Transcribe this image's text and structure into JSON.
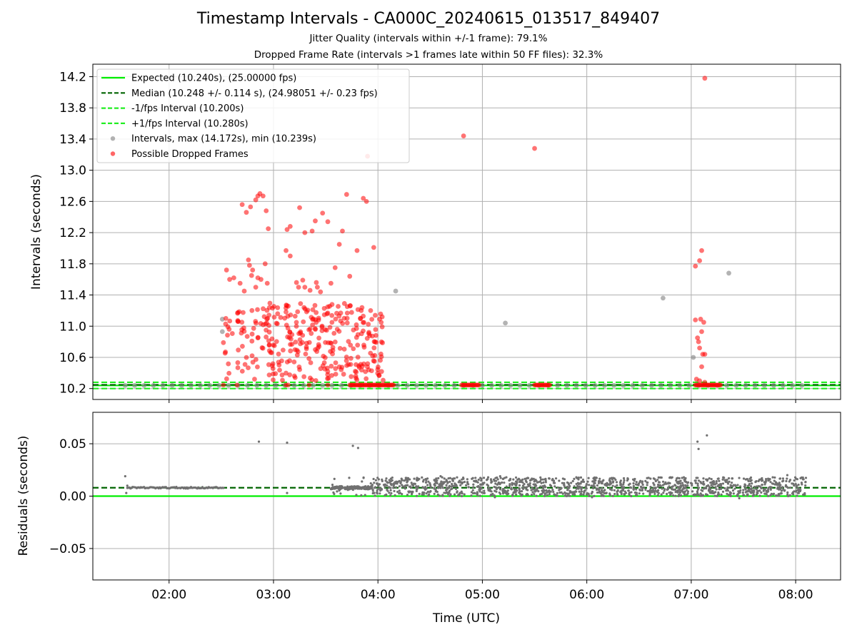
{
  "title": "Timestamp Intervals - CA000C_20240615_013517_849407",
  "subtitle_1": "Jitter Quality (intervals within +/-1 frame): 79.1%",
  "subtitle_2": "Dropped Frame Rate (intervals >1 frames late within 50 FF files): 32.3%",
  "colors": {
    "expected": "#00ee00",
    "median": "#006400",
    "bound": "#22ee22",
    "intervals": "#808080",
    "dropped": "#ff0000",
    "grid": "#b0b0b0"
  },
  "chart_data": [
    {
      "type": "scatter",
      "ylabel": "Intervals (seconds)",
      "xlim": [
        1.27,
        8.43
      ],
      "ylim": [
        10.06,
        14.36
      ],
      "yticks": [
        10.2,
        10.6,
        11.0,
        11.4,
        11.8,
        12.2,
        12.6,
        13.0,
        13.4,
        13.8,
        14.2
      ],
      "ytick_labels": [
        "10.2",
        "10.6",
        "11.0",
        "11.4",
        "11.8",
        "12.2",
        "12.6",
        "13.0",
        "13.4",
        "13.8",
        "14.2"
      ],
      "grid": true,
      "legend_position": "top-left",
      "lines": [
        {
          "name": "Expected (10.240s), (25.00000 fps)",
          "y": 10.24,
          "style": "solid",
          "color": "#00ee00"
        },
        {
          "name": "Median (10.248 +/- 0.114 s), (24.98051 +/- 0.23 fps)",
          "y": 10.248,
          "style": "dashed",
          "color": "#006400"
        },
        {
          "name": "-1/fps Interval (10.200s)",
          "y": 10.2,
          "style": "dashed",
          "color": "#22ee22"
        },
        {
          "name": "+1/fps Interval (10.280s)",
          "y": 10.28,
          "style": "dashed",
          "color": "#22ee22"
        }
      ],
      "series": [
        {
          "name": "Intervals, max (14.172s), min (10.239s)",
          "color": "#808080",
          "baseline": {
            "y": 10.24,
            "x_start": 1.58,
            "x_end": 8.08,
            "step": 0.09
          },
          "points": [
            [
              2.51,
              11.09
            ],
            [
              2.51,
              10.93
            ],
            [
              4.17,
              11.45
            ],
            [
              5.22,
              11.04
            ],
            [
              6.73,
              11.36
            ],
            [
              7.02,
              10.6
            ],
            [
              7.36,
              11.68
            ]
          ]
        },
        {
          "name": "Possible Dropped Frames",
          "color": "#ff0000",
          "cluster": {
            "x_start": 2.52,
            "x_end": 4.05,
            "y_min": 10.3,
            "y_max": 11.3,
            "count": 330
          },
          "cluster_baseline_segments": [
            [
              3.73,
              4.15
            ],
            [
              4.8,
              4.97
            ],
            [
              5.5,
              5.65
            ],
            [
              7.04,
              7.28
            ]
          ],
          "points": [
            [
              2.55,
              11.72
            ],
            [
              2.58,
              11.6
            ],
            [
              2.62,
              11.62
            ],
            [
              2.68,
              11.55
            ],
            [
              2.72,
              11.45
            ],
            [
              2.76,
              11.85
            ],
            [
              2.77,
              11.78
            ],
            [
              2.79,
              11.65
            ],
            [
              2.8,
              11.72
            ],
            [
              2.83,
              11.5
            ],
            [
              2.85,
              11.62
            ],
            [
              2.88,
              11.6
            ],
            [
              2.92,
              11.8
            ],
            [
              2.94,
              11.55
            ],
            [
              2.7,
              12.56
            ],
            [
              2.74,
              12.46
            ],
            [
              2.78,
              12.53
            ],
            [
              2.83,
              12.62
            ],
            [
              2.85,
              12.67
            ],
            [
              2.87,
              12.7
            ],
            [
              2.9,
              12.67
            ],
            [
              2.93,
              12.48
            ],
            [
              2.95,
              12.25
            ],
            [
              3.12,
              11.97
            ],
            [
              3.16,
              11.9
            ],
            [
              3.22,
              11.56
            ],
            [
              3.24,
              11.5
            ],
            [
              3.28,
              11.59
            ],
            [
              3.13,
              12.24
            ],
            [
              3.16,
              12.28
            ],
            [
              3.25,
              12.52
            ],
            [
              3.3,
              12.2
            ],
            [
              3.37,
              12.22
            ],
            [
              3.4,
              12.35
            ],
            [
              3.41,
              11.56
            ],
            [
              3.45,
              11.44
            ],
            [
              3.47,
              12.45
            ],
            [
              3.52,
              12.34
            ],
            [
              3.35,
              11.46
            ],
            [
              3.42,
              11.5
            ],
            [
              3.55,
              11.55
            ],
            [
              3.59,
              11.75
            ],
            [
              3.63,
              12.05
            ],
            [
              3.66,
              12.22
            ],
            [
              3.7,
              12.69
            ],
            [
              3.73,
              11.64
            ],
            [
              3.8,
              11.97
            ],
            [
              3.86,
              12.64
            ],
            [
              3.89,
              12.6
            ],
            [
              3.84,
              11.2
            ],
            [
              3.9,
              13.18
            ],
            [
              3.93,
              11.2
            ],
            [
              3.96,
              12.01
            ],
            [
              3.3,
              11.5
            ],
            [
              4.82,
              13.44
            ],
            [
              5.5,
              13.28
            ],
            [
              7.13,
              14.18
            ],
            [
              7.04,
              11.77
            ],
            [
              7.08,
              11.84
            ],
            [
              7.1,
              11.97
            ],
            [
              7.04,
              11.08
            ],
            [
              7.09,
              11.09
            ],
            [
              7.12,
              11.05
            ],
            [
              7.06,
              10.85
            ],
            [
              7.1,
              10.93
            ],
            [
              7.08,
              10.72
            ],
            [
              7.07,
              10.8
            ],
            [
              7.11,
              10.64
            ],
            [
              7.13,
              10.64
            ],
            [
              7.1,
              10.48
            ],
            [
              7.05,
              10.32
            ],
            [
              7.08,
              10.3
            ],
            [
              7.13,
              10.28
            ]
          ]
        }
      ]
    },
    {
      "type": "scatter",
      "xlabel": "Time (UTC)",
      "ylabel": "Residuals (seconds)",
      "xlim": [
        1.27,
        8.43
      ],
      "ylim": [
        -0.08,
        0.08
      ],
      "yticks": [
        -0.05,
        0.0,
        0.05
      ],
      "ytick_labels": [
        "−0.05",
        "0.00",
        "0.05"
      ],
      "xticks": [
        2,
        3,
        4,
        5,
        6,
        7,
        8
      ],
      "xtick_labels": [
        "02:00",
        "03:00",
        "04:00",
        "05:00",
        "06:00",
        "07:00",
        "08:00"
      ],
      "grid": true,
      "lines": [
        {
          "y": 0.0,
          "style": "solid",
          "color": "#00ee00"
        },
        {
          "y": 0.008,
          "style": "dashed",
          "color": "#006400"
        }
      ],
      "series": [
        {
          "color": "#707070",
          "early": {
            "x_start": 1.6,
            "x_end": 2.52,
            "y": 0.008
          },
          "dense": {
            "x_start": 3.55,
            "x_end": 8.1,
            "y_min": 0.0,
            "y_max": 0.018,
            "count": 1500
          },
          "points": [
            [
              1.58,
              0.019
            ],
            [
              1.59,
              0.003
            ],
            [
              1.6,
              0.01
            ],
            [
              2.86,
              0.052
            ],
            [
              3.13,
              0.051
            ],
            [
              3.13,
              0.003
            ],
            [
              3.76,
              0.048
            ],
            [
              3.81,
              0.046
            ],
            [
              7.06,
              0.052
            ],
            [
              7.07,
              0.045
            ],
            [
              7.15,
              0.058
            ],
            [
              4.6,
              0.019
            ],
            [
              5.17,
              0.019
            ],
            [
              5.9,
              0.018
            ],
            [
              6.8,
              0.018
            ],
            [
              7.92,
              0.02
            ],
            [
              5.12,
              -0.001
            ],
            [
              6.05,
              -0.001
            ],
            [
              7.46,
              -0.002
            ]
          ]
        }
      ]
    }
  ]
}
